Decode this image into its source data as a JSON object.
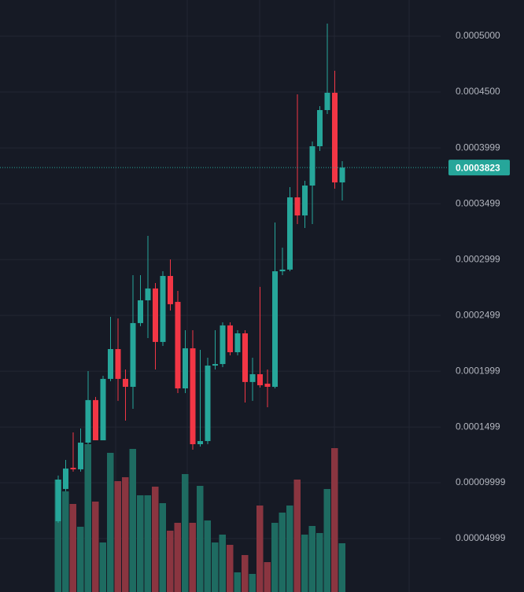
{
  "chart_data": {
    "type": "candlestick",
    "open": [
      6.55e-05,
      9.44e-05,
      0.0001134,
      0.000112,
      0.0001359,
      0.000174,
      0.000138,
      0.000193,
      0.0002197,
      0.000193,
      0.0001859,
      0.000243,
      0.0002634,
      0.000274,
      0.0002261,
      0.0002852,
      0.000262,
      0.0001845,
      0.0002204,
      0.0001345,
      0.0001373,
      0.0002049,
      0.0002063,
      0.0002409,
      0.0002169,
      0.0002338,
      0.0001902,
      0.0001972,
      0.0001887,
      0.0001859,
      0.0002894,
      0.0002909,
      0.0003556,
      0.0003394,
      0.0003662,
      0.0004014,
      0.0004338,
      0.0004493,
      0.000369
    ],
    "high": [
      0.0001064,
      0.0001204,
      0.0001451,
      0.0001486,
      0.0002,
      0.0001768,
      0.0001958,
      0.0002486,
      0.0002472,
      0.0002014,
      0.0002859,
      0.0002859,
      0.0003211,
      0.0002789,
      0.0002894,
      0.0003,
      0.0002718,
      0.0002366,
      0.0002366,
      0.000219,
      0.000212,
      0.0002366,
      0.0002437,
      0.0002437,
      0.0002366,
      0.0002366,
      0.000212,
      0.0002754,
      0.0002014,
      0.0003331,
      0.0003106,
      0.0003648,
      0.0004479,
      0.0003704,
      0.0004056,
      0.0004373,
      0.0005113,
      0.000469,
      0.000388
    ],
    "low": [
      6.41e-05,
      9.23e-05,
      0.0001099,
      0.0001099,
      0.0001345,
      0.000138,
      0.000138,
      0.0001909,
      0.0001733,
      0.0001556,
      0.0001662,
      0.0002402,
      0.0002296,
      0.0002014,
      0.0002225,
      0.0002542,
      0.0001803,
      0.0001803,
      0.0001296,
      0.0001324,
      0.0001345,
      0.0002014,
      0.0002035,
      0.0002141,
      0.0002141,
      0.0001718,
      0.0001733,
      0.0001852,
      0.0001676,
      0.0001845,
      0.0002859,
      0.0002894,
      0.0003317,
      0.0003282,
      0.0003317,
      0.0003972,
      0.0004303,
      0.0003634,
      0.0003528
    ],
    "close": [
      0.0001028,
      0.0001127,
      0.000112,
      0.0001359,
      0.000174,
      0.000138,
      0.000193,
      0.0002197,
      0.000193,
      0.0001859,
      0.000243,
      0.0002634,
      0.000274,
      0.0002261,
      0.0002852,
      0.0002599,
      0.0001845,
      0.0002204,
      0.0001345,
      0.0001373,
      0.0002049,
      0.0002063,
      0.0002409,
      0.0002169,
      0.0002338,
      0.0001902,
      0.0001972,
      0.0001873,
      0.0001859,
      0.0002894,
      0.0002909,
      0.0003556,
      0.0003394,
      0.0003662,
      0.0004014,
      0.0004338,
      0.0004493,
      0.000369,
      0.0003823
    ],
    "volume": [
      143,
      128,
      112,
      83,
      188,
      115,
      63,
      177,
      141,
      146,
      182,
      123,
      123,
      134,
      113,
      78,
      88,
      150,
      88,
      135,
      91,
      63,
      73,
      60,
      25,
      47,
      23,
      110,
      38,
      88,
      101,
      110,
      143,
      73,
      84,
      75,
      131,
      183,
      62
    ],
    "up_color": "#26a69a",
    "down_color": "#f23645",
    "volume_up_color": "#1e6b61",
    "volume_down_color": "#8a3540",
    "ylim": [
      2.1e-06,
      0.0005324
    ],
    "yticks": [
      {
        "value": 0.0005,
        "label": "0.0005000"
      },
      {
        "value": 0.00045,
        "label": "0.0004500"
      },
      0.0003999,
      0.0003499,
      0.0002999,
      0.0002499,
      0.0001999,
      0.0001499,
      9.999e-05,
      4.999e-05
    ],
    "last_price": 0.0003823,
    "grid": true
  }
}
